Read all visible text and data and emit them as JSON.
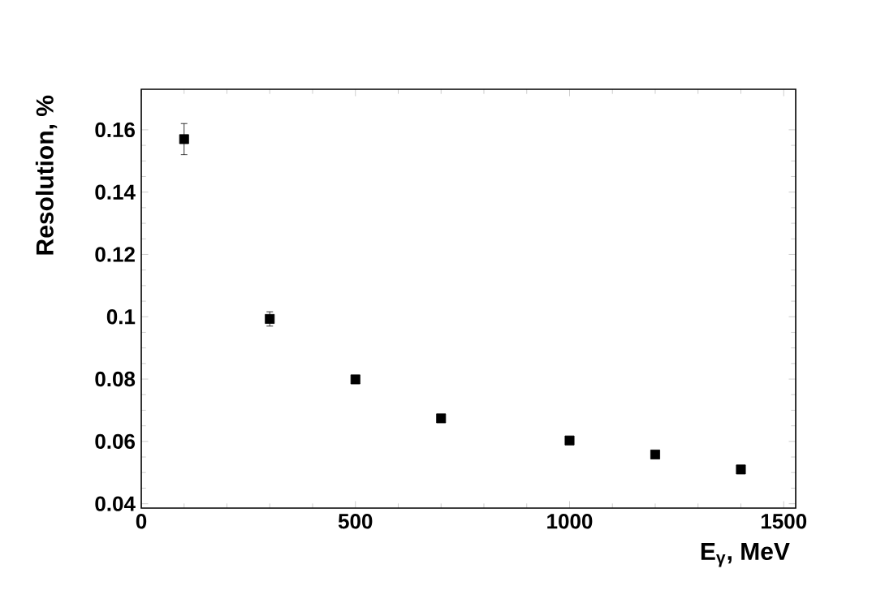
{
  "chart_data": {
    "type": "scatter",
    "xlabel": "E$_{γ}$, MeV",
    "ylabel": "Resolution, %",
    "x": [
      100,
      300,
      500,
      700,
      1000,
      1200,
      1400
    ],
    "values": [
      0.157,
      0.0993,
      0.0799,
      0.0674,
      0.0603,
      0.0558,
      0.051
    ],
    "errors": [
      0.005,
      0.0023,
      0.001,
      0.001,
      null,
      null,
      null
    ],
    "color": "#000000",
    "marker": "square",
    "xlim": [
      0,
      1528
    ],
    "ylim": [
      0.0386,
      0.173
    ],
    "xticks": [
      0,
      500,
      1000,
      1500
    ],
    "yticks": [
      0.04,
      0.06,
      0.08,
      0.1,
      0.12,
      0.14,
      0.16
    ],
    "grid": false
  }
}
